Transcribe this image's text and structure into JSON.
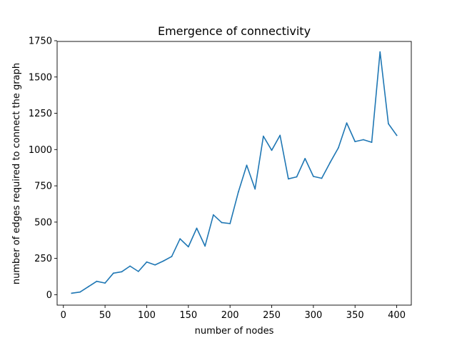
{
  "chart_data": {
    "type": "line",
    "title": "Emergence of connectivity",
    "xlabel": "number of nodes",
    "ylabel": "number of edges required to connect the graph",
    "xlim": [
      -7.5,
      417.5
    ],
    "ylim": [
      -72,
      1745
    ],
    "xticks": [
      0,
      50,
      100,
      150,
      200,
      250,
      300,
      350,
      400
    ],
    "yticks": [
      0,
      250,
      500,
      750,
      1000,
      1250,
      1500,
      1750
    ],
    "grid": false,
    "legend": "none",
    "series": [
      {
        "color": "#1f77b4",
        "x": [
          10,
          20,
          30,
          40,
          50,
          60,
          70,
          80,
          90,
          100,
          110,
          120,
          130,
          140,
          150,
          160,
          170,
          180,
          190,
          200,
          210,
          220,
          230,
          240,
          250,
          260,
          270,
          280,
          290,
          300,
          310,
          320,
          330,
          340,
          350,
          360,
          370,
          380,
          390,
          400
        ],
        "y": [
          10,
          18,
          55,
          92,
          80,
          148,
          158,
          197,
          160,
          225,
          205,
          232,
          263,
          385,
          330,
          458,
          335,
          550,
          497,
          490,
          708,
          892,
          728,
          1092,
          995,
          1098,
          798,
          812,
          938,
          815,
          802,
          910,
          1012,
          1183,
          1055,
          1068,
          1050,
          1673,
          1178,
          1098
        ]
      }
    ]
  }
}
